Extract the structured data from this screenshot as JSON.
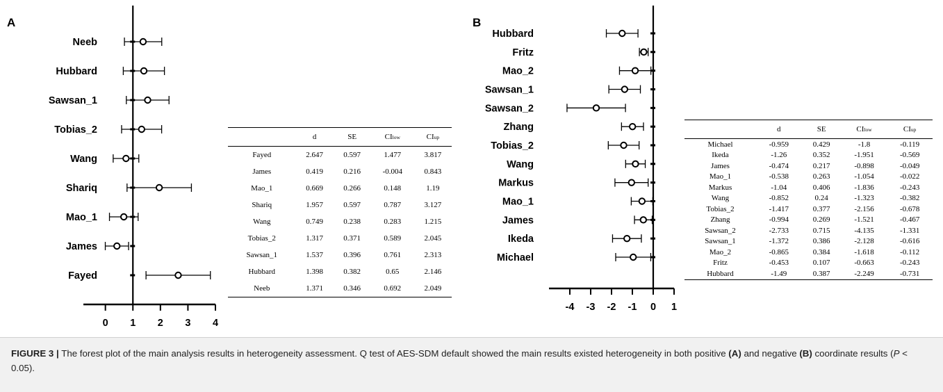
{
  "panels": [
    {
      "letter": "A",
      "axis": {
        "min": -0.8,
        "max": 4,
        "ticks": [
          0,
          1,
          2,
          3,
          4
        ],
        "zero_line": 1
      },
      "studies": [
        {
          "label": "Neeb",
          "d": 1.371,
          "lo": 0.692,
          "hi": 2.049
        },
        {
          "label": "Hubbard",
          "d": 1.398,
          "lo": 0.65,
          "hi": 2.146
        },
        {
          "label": "Sawsan_1",
          "d": 1.537,
          "lo": 0.761,
          "hi": 2.313
        },
        {
          "label": "Tobias_2",
          "d": 1.317,
          "lo": 0.589,
          "hi": 2.045
        },
        {
          "label": "Wang",
          "d": 0.749,
          "lo": 0.283,
          "hi": 1.215
        },
        {
          "label": "Shariq",
          "d": 1.957,
          "lo": 0.787,
          "hi": 3.127
        },
        {
          "label": "Mao_1",
          "d": 0.669,
          "lo": 0.148,
          "hi": 1.19
        },
        {
          "label": "James",
          "d": 0.419,
          "lo": -0.004,
          "hi": 0.843
        },
        {
          "label": "Fayed",
          "d": 2.647,
          "lo": 1.477,
          "hi": 3.817
        }
      ]
    },
    {
      "letter": "B",
      "axis": {
        "min": -5,
        "max": 1,
        "ticks": [
          -4,
          -3,
          -2,
          -1,
          0,
          1
        ],
        "zero_line": 0
      },
      "studies": [
        {
          "label": "Hubbard",
          "d": -1.49,
          "lo": -2.249,
          "hi": -0.731
        },
        {
          "label": "Fritz",
          "d": -0.453,
          "lo": -0.663,
          "hi": -0.243
        },
        {
          "label": "Mao_2",
          "d": -0.865,
          "lo": -1.618,
          "hi": -0.112
        },
        {
          "label": "Sawsan_1",
          "d": -1.372,
          "lo": -2.128,
          "hi": -0.616
        },
        {
          "label": "Sawsan_2",
          "d": -2.733,
          "lo": -4.135,
          "hi": -1.331
        },
        {
          "label": "Zhang",
          "d": -0.994,
          "lo": -1.521,
          "hi": -0.467
        },
        {
          "label": "Tobias_2",
          "d": -1.417,
          "lo": -2.156,
          "hi": -0.678
        },
        {
          "label": "Wang",
          "d": -0.852,
          "lo": -1.323,
          "hi": -0.382
        },
        {
          "label": "Markus",
          "d": -1.04,
          "lo": -1.836,
          "hi": -0.243
        },
        {
          "label": "Mao_1",
          "d": -0.538,
          "lo": -1.054,
          "hi": -0.022
        },
        {
          "label": "James",
          "d": -0.474,
          "lo": -0.898,
          "hi": -0.049
        },
        {
          "label": "Ikeda",
          "d": -1.26,
          "lo": -1.951,
          "hi": -0.569
        },
        {
          "label": "Michael",
          "d": -0.959,
          "lo": -1.8,
          "hi": -0.119
        }
      ]
    }
  ],
  "tables": {
    "headers": {
      "d": "d",
      "se": "SE",
      "ci": "CI",
      "low": "low",
      "up": "up"
    },
    "A": [
      [
        "Fayed",
        "2.647",
        "0.597",
        "1.477",
        "3.817"
      ],
      [
        "James",
        "0.419",
        "0.216",
        "-0.004",
        "0.843"
      ],
      [
        "Mao_1",
        "0.669",
        "0.266",
        "0.148",
        "1.19"
      ],
      [
        "Shariq",
        "1.957",
        "0.597",
        "0.787",
        "3.127"
      ],
      [
        "Wang",
        "0.749",
        "0.238",
        "0.283",
        "1.215"
      ],
      [
        "Tobias_2",
        "1.317",
        "0.371",
        "0.589",
        "2.045"
      ],
      [
        "Sawsan_1",
        "1.537",
        "0.396",
        "0.761",
        "2.313"
      ],
      [
        "Hubbard",
        "1.398",
        "0.382",
        "0.65",
        "2.146"
      ],
      [
        "Neeb",
        "1.371",
        "0.346",
        "0.692",
        "2.049"
      ]
    ],
    "B": [
      [
        "Michael",
        "-0.959",
        "0.429",
        "-1.8",
        "-0.119"
      ],
      [
        "Ikeda",
        "-1.26",
        "0.352",
        "-1.951",
        "-0.569"
      ],
      [
        "James",
        "-0.474",
        "0.217",
        "-0.898",
        "-0.049"
      ],
      [
        "Mao_1",
        "-0.538",
        "0.263",
        "-1.054",
        "-0.022"
      ],
      [
        "Markus",
        "-1.04",
        "0.406",
        "-1.836",
        "-0.243"
      ],
      [
        "Wang",
        "-0.852",
        "0.24",
        "-1.323",
        "-0.382"
      ],
      [
        "Tobias_2",
        "-1.417",
        "0.377",
        "-2.156",
        "-0.678"
      ],
      [
        "Zhang",
        "-0.994",
        "0.269",
        "-1.521",
        "-0.467"
      ],
      [
        "Sawsan_2",
        "-2.733",
        "0.715",
        "-4.135",
        "-1.331"
      ],
      [
        "Sawsan_1",
        "-1.372",
        "0.386",
        "-2.128",
        "-0.616"
      ],
      [
        "Mao_2",
        "-0.865",
        "0.384",
        "-1.618",
        "-0.112"
      ],
      [
        "Fritz",
        "-0.453",
        "0.107",
        "-0.663",
        "-0.243"
      ],
      [
        "Hubbard",
        "-1.49",
        "0.387",
        "-2.249",
        "-0.731"
      ]
    ]
  },
  "caption": {
    "label": "FIGURE 3 |",
    "text1": " The forest plot of the main analysis results in heterogeneity assessment. Q test of AES-SDM default showed the main results existed heterogeneity in both positive ",
    "a": "(A)",
    "text2": " and negative ",
    "b": "(B)",
    "text3": " coordinate results (",
    "p": "P",
    "text4": " < 0.05)."
  },
  "chart_data": [
    {
      "type": "scatter",
      "title": "A",
      "categories": [
        "Neeb",
        "Hubbard",
        "Sawsan_1",
        "Tobias_2",
        "Wang",
        "Shariq",
        "Mao_1",
        "James",
        "Fayed"
      ],
      "series": [
        {
          "name": "d",
          "values": [
            1.371,
            1.398,
            1.537,
            1.317,
            0.749,
            1.957,
            0.669,
            0.419,
            2.647
          ]
        },
        {
          "name": "CI low",
          "values": [
            0.692,
            0.65,
            0.761,
            0.589,
            0.283,
            0.787,
            0.148,
            -0.004,
            1.477
          ]
        },
        {
          "name": "CI up",
          "values": [
            2.049,
            2.146,
            2.313,
            2.045,
            1.215,
            3.127,
            1.19,
            0.843,
            3.817
          ]
        }
      ],
      "xlim": [
        -0.8,
        4
      ],
      "xticks": [
        0,
        1,
        2,
        3,
        4
      ]
    },
    {
      "type": "scatter",
      "title": "B",
      "categories": [
        "Hubbard",
        "Fritz",
        "Mao_2",
        "Sawsan_1",
        "Sawsan_2",
        "Zhang",
        "Tobias_2",
        "Wang",
        "Markus",
        "Mao_1",
        "James",
        "Ikeda",
        "Michael"
      ],
      "series": [
        {
          "name": "d",
          "values": [
            -1.49,
            -0.453,
            -0.865,
            -1.372,
            -2.733,
            -0.994,
            -1.417,
            -0.852,
            -1.04,
            -0.538,
            -0.474,
            -1.26,
            -0.959
          ]
        },
        {
          "name": "CI low",
          "values": [
            -2.249,
            -0.663,
            -1.618,
            -2.128,
            -4.135,
            -1.521,
            -2.156,
            -1.323,
            -1.836,
            -1.054,
            -0.898,
            -1.951,
            -1.8
          ]
        },
        {
          "name": "CI up",
          "values": [
            -0.731,
            -0.243,
            -0.112,
            -0.616,
            -1.331,
            -0.467,
            -0.678,
            -0.382,
            -0.243,
            -0.022,
            -0.049,
            -0.569,
            -0.119
          ]
        }
      ],
      "xlim": [
        -5,
        1
      ],
      "xticks": [
        -4,
        -3,
        -2,
        -1,
        0,
        1
      ]
    }
  ]
}
